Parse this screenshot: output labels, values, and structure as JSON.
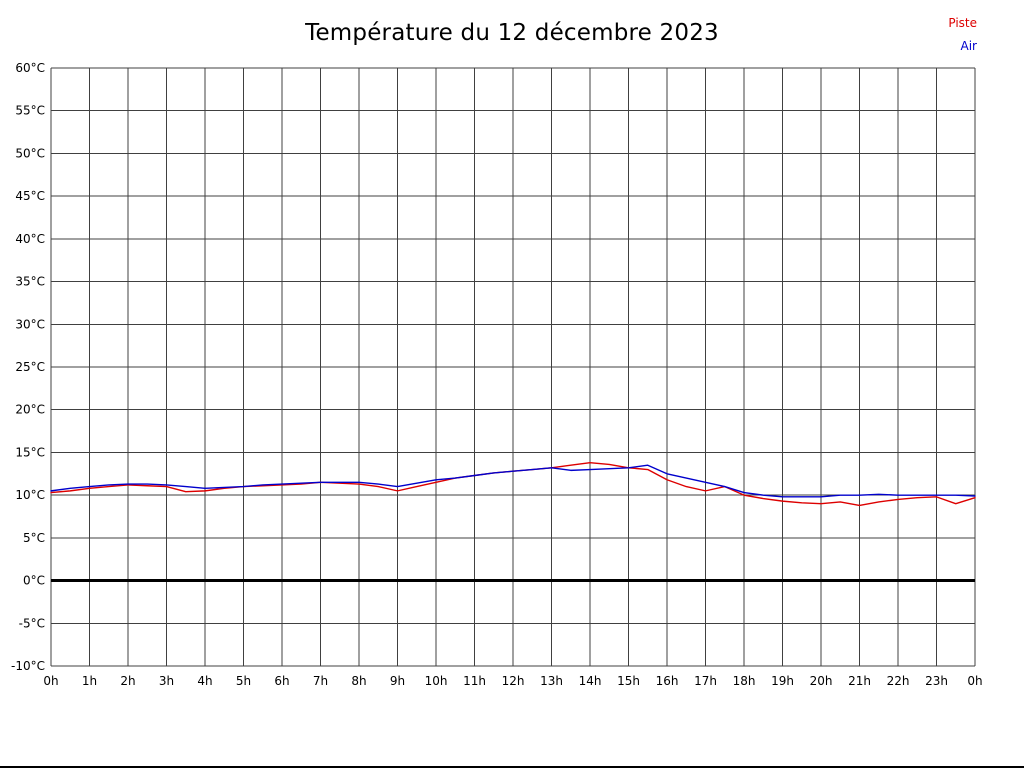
{
  "chart_data": {
    "type": "line",
    "title": "Température du 12 décembre 2023",
    "xlabel": "",
    "ylabel": "",
    "xlim": [
      0,
      24
    ],
    "ylim": [
      -10,
      60
    ],
    "y_tick_step": 5,
    "y_unit": "°C",
    "x_grid_step": 1,
    "x_tick_step": 1,
    "x_tick_labels": [
      "0h",
      "1h",
      "2h",
      "3h",
      "4h",
      "5h",
      "6h",
      "7h",
      "8h",
      "9h",
      "10h",
      "11h",
      "12h",
      "13h",
      "14h",
      "15h",
      "16h",
      "17h",
      "18h",
      "19h",
      "20h",
      "21h",
      "22h",
      "23h",
      "0h"
    ],
    "grid_on": true,
    "grid_color": "#404040",
    "zero_line_color": "#000000",
    "legend_position": "top-right",
    "x": [
      0,
      0.5,
      1,
      1.5,
      2,
      2.5,
      3,
      3.5,
      4,
      4.5,
      5,
      5.5,
      6,
      6.5,
      7,
      7.5,
      8,
      8.5,
      9,
      9.5,
      10,
      10.5,
      11,
      11.5,
      12,
      12.5,
      13,
      13.5,
      14,
      14.5,
      15,
      15.5,
      16,
      16.5,
      17,
      17.5,
      18,
      18.5,
      19,
      19.5,
      20,
      20.5,
      21,
      21.5,
      22,
      22.5,
      23,
      23.5,
      24
    ],
    "series": [
      {
        "name": "Piste",
        "color": "#dd0000",
        "values": [
          10.3,
          10.5,
          10.8,
          11.0,
          11.2,
          11.1,
          11.0,
          10.4,
          10.5,
          10.8,
          11.0,
          11.1,
          11.2,
          11.3,
          11.5,
          11.4,
          11.3,
          11.0,
          10.5,
          11.0,
          11.5,
          12.0,
          12.3,
          12.6,
          12.8,
          13.0,
          13.2,
          13.5,
          13.8,
          13.6,
          13.2,
          13.0,
          11.8,
          11.0,
          10.5,
          11.0,
          10.0,
          9.6,
          9.3,
          9.1,
          9.0,
          9.2,
          8.8,
          9.2,
          9.5,
          9.7,
          9.8,
          9.0,
          9.7
        ]
      },
      {
        "name": "Air",
        "color": "#0000cc",
        "values": [
          10.5,
          10.8,
          11.0,
          11.2,
          11.3,
          11.3,
          11.2,
          11.0,
          10.8,
          10.9,
          11.0,
          11.2,
          11.3,
          11.4,
          11.5,
          11.5,
          11.5,
          11.3,
          11.0,
          11.4,
          11.8,
          12.0,
          12.3,
          12.6,
          12.8,
          13.0,
          13.2,
          12.9,
          13.0,
          13.1,
          13.2,
          13.5,
          12.5,
          12.0,
          11.5,
          11.0,
          10.3,
          10.0,
          9.8,
          9.8,
          9.8,
          10.0,
          10.0,
          10.1,
          10.0,
          10.0,
          10.0,
          10.0,
          9.9
        ]
      }
    ]
  }
}
